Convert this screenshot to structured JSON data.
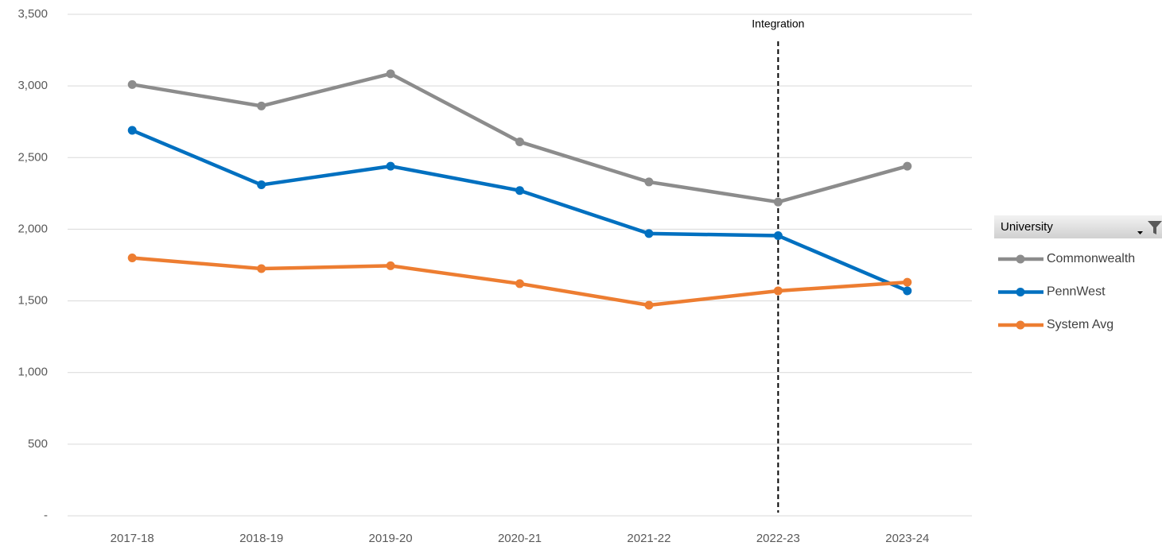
{
  "chart_data": {
    "type": "line",
    "categories": [
      "2017-18",
      "2018-19",
      "2019-20",
      "2020-21",
      "2021-22",
      "2022-23",
      "2023-24"
    ],
    "series": [
      {
        "name": "Commonwealth",
        "color": "#8c8c8c",
        "values": [
          3010,
          2860,
          3085,
          2610,
          2330,
          2190,
          2440
        ]
      },
      {
        "name": "PennWest",
        "color": "#0070c0",
        "values": [
          2690,
          2310,
          2440,
          2270,
          1970,
          1955,
          1570
        ]
      },
      {
        "name": "System Avg",
        "color": "#ed7d31",
        "values": [
          1800,
          1725,
          1745,
          1620,
          1470,
          1570,
          1630
        ]
      }
    ],
    "ylim": [
      0,
      3500
    ],
    "yticks": [
      {
        "value": 0,
        "label": "-"
      },
      500,
      {
        "value": 1000,
        "label": "1,000"
      },
      {
        "value": 1500,
        "label": "1,500"
      },
      {
        "value": 2000,
        "label": "2,000"
      },
      {
        "value": 2500,
        "label": "2,500"
      },
      {
        "value": 3000,
        "label": "3,000"
      },
      {
        "value": 3500,
        "label": "3,500"
      }
    ],
    "grid": true,
    "legend": "right",
    "legend_title": "University",
    "annotations": [
      {
        "text": "Integration",
        "x": "2022-23"
      }
    ]
  }
}
